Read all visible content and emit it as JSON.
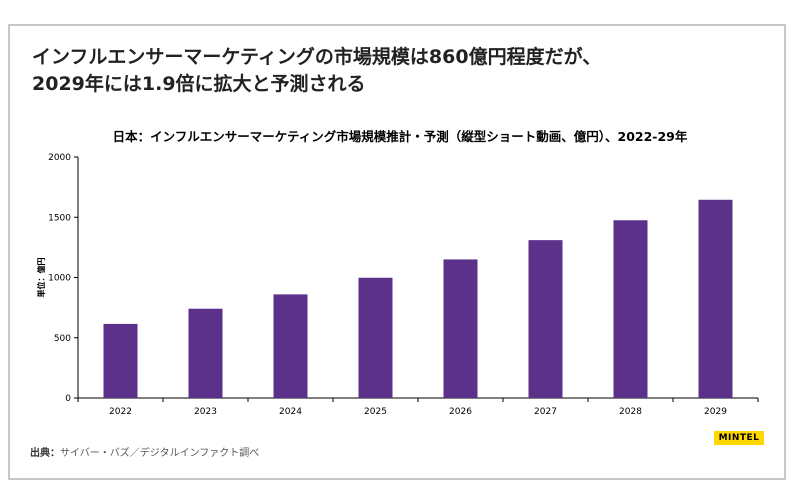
{
  "headline": {
    "line1": "インフルエンサーマーケティングの市場規模は860億円程度だが、",
    "line2": "2029年には1.9倍に拡大と予測される"
  },
  "source": {
    "label": "出典：",
    "text": "サイバー・バズ／デジタルインファクト調べ"
  },
  "logo": {
    "text": "MINTEL"
  },
  "colors": {
    "bar": "#5b3189",
    "accent": "#ffd800",
    "frame": "#c8c8c8"
  },
  "chart_data": {
    "type": "bar",
    "title": "日本：インフルエンサーマーケティング市場規模推計・予測（縦型ショート動画、億円）、2022-29年",
    "ylabel": "単位：億円",
    "xlabel": "",
    "categories": [
      "2022",
      "2023",
      "2024",
      "2025",
      "2026",
      "2027",
      "2028",
      "2029"
    ],
    "values": [
      615,
      741,
      860,
      998,
      1150,
      1310,
      1475,
      1645
    ],
    "ylim": [
      0,
      2000
    ],
    "yticks": [
      0,
      500,
      1000,
      1500,
      2000
    ],
    "grid": false,
    "legend": "none"
  }
}
